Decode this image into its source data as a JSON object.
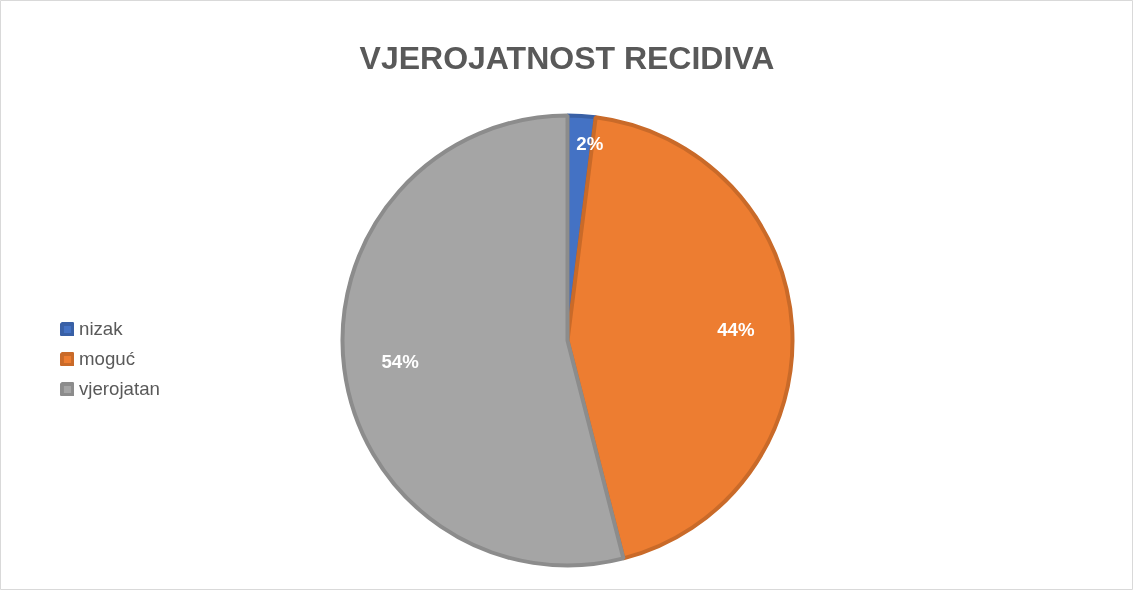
{
  "chart_data": {
    "type": "pie",
    "title": "VJEROJATNOST RECIDIVA",
    "categories": [
      "nizak",
      "moguć",
      "vjerojatan"
    ],
    "values": [
      2,
      44,
      54
    ],
    "colors": [
      "#4472c4",
      "#ed7d31",
      "#a5a5a5"
    ],
    "value_labels": [
      "2%",
      "44%",
      "54%"
    ],
    "legend": "left"
  }
}
